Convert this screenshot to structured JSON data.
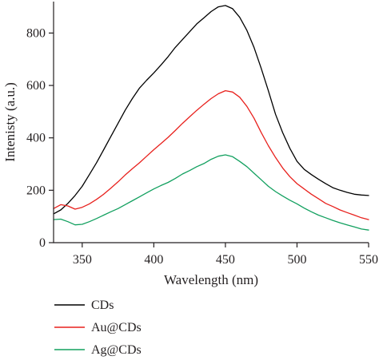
{
  "chart_data": {
    "type": "line",
    "xlabel": "Wavelength (nm)",
    "ylabel": "Intenisty (a.u.)",
    "xlim": [
      330,
      550
    ],
    "ylim": [
      0,
      920
    ],
    "xticks": [
      350,
      400,
      450,
      500,
      550
    ],
    "yticks": [
      0,
      200,
      400,
      600,
      800
    ],
    "legend_position": "bottom-left, below plot",
    "series": [
      {
        "name": "CDs",
        "color": "#000000",
        "points": [
          [
            330,
            110
          ],
          [
            335,
            125
          ],
          [
            340,
            150
          ],
          [
            345,
            180
          ],
          [
            350,
            215
          ],
          [
            355,
            260
          ],
          [
            360,
            305
          ],
          [
            365,
            355
          ],
          [
            370,
            405
          ],
          [
            375,
            455
          ],
          [
            380,
            505
          ],
          [
            385,
            550
          ],
          [
            390,
            590
          ],
          [
            395,
            620
          ],
          [
            400,
            648
          ],
          [
            405,
            678
          ],
          [
            410,
            710
          ],
          [
            415,
            745
          ],
          [
            420,
            775
          ],
          [
            425,
            805
          ],
          [
            430,
            835
          ],
          [
            435,
            858
          ],
          [
            440,
            882
          ],
          [
            445,
            900
          ],
          [
            450,
            905
          ],
          [
            455,
            893
          ],
          [
            460,
            860
          ],
          [
            465,
            810
          ],
          [
            470,
            745
          ],
          [
            475,
            665
          ],
          [
            480,
            580
          ],
          [
            485,
            490
          ],
          [
            490,
            420
          ],
          [
            495,
            360
          ],
          [
            500,
            310
          ],
          [
            505,
            280
          ],
          [
            510,
            260
          ],
          [
            515,
            242
          ],
          [
            520,
            225
          ],
          [
            525,
            210
          ],
          [
            530,
            200
          ],
          [
            535,
            192
          ],
          [
            540,
            185
          ],
          [
            545,
            182
          ],
          [
            550,
            180
          ]
        ]
      },
      {
        "name": "Au@CDs",
        "color": "#e8211d",
        "points": [
          [
            330,
            130
          ],
          [
            335,
            145
          ],
          [
            340,
            140
          ],
          [
            345,
            128
          ],
          [
            350,
            135
          ],
          [
            355,
            148
          ],
          [
            360,
            165
          ],
          [
            365,
            185
          ],
          [
            370,
            208
          ],
          [
            375,
            232
          ],
          [
            380,
            258
          ],
          [
            385,
            282
          ],
          [
            390,
            305
          ],
          [
            395,
            330
          ],
          [
            400,
            355
          ],
          [
            405,
            378
          ],
          [
            410,
            402
          ],
          [
            415,
            428
          ],
          [
            420,
            455
          ],
          [
            425,
            480
          ],
          [
            430,
            505
          ],
          [
            435,
            528
          ],
          [
            440,
            550
          ],
          [
            445,
            568
          ],
          [
            450,
            580
          ],
          [
            455,
            575
          ],
          [
            460,
            555
          ],
          [
            465,
            520
          ],
          [
            470,
            475
          ],
          [
            475,
            420
          ],
          [
            480,
            370
          ],
          [
            485,
            325
          ],
          [
            490,
            285
          ],
          [
            495,
            252
          ],
          [
            500,
            225
          ],
          [
            505,
            205
          ],
          [
            510,
            185
          ],
          [
            515,
            168
          ],
          [
            520,
            150
          ],
          [
            525,
            138
          ],
          [
            530,
            125
          ],
          [
            535,
            115
          ],
          [
            540,
            105
          ],
          [
            545,
            95
          ],
          [
            550,
            88
          ]
        ]
      },
      {
        "name": "Ag@CDs",
        "color": "#12a05f",
        "points": [
          [
            330,
            88
          ],
          [
            335,
            90
          ],
          [
            340,
            80
          ],
          [
            345,
            68
          ],
          [
            350,
            70
          ],
          [
            355,
            80
          ],
          [
            360,
            92
          ],
          [
            365,
            105
          ],
          [
            370,
            118
          ],
          [
            375,
            130
          ],
          [
            380,
            145
          ],
          [
            385,
            160
          ],
          [
            390,
            175
          ],
          [
            395,
            190
          ],
          [
            400,
            205
          ],
          [
            405,
            218
          ],
          [
            410,
            230
          ],
          [
            415,
            245
          ],
          [
            420,
            262
          ],
          [
            425,
            275
          ],
          [
            430,
            290
          ],
          [
            435,
            302
          ],
          [
            440,
            318
          ],
          [
            445,
            330
          ],
          [
            450,
            335
          ],
          [
            455,
            328
          ],
          [
            460,
            310
          ],
          [
            465,
            290
          ],
          [
            470,
            265
          ],
          [
            475,
            240
          ],
          [
            480,
            215
          ],
          [
            485,
            195
          ],
          [
            490,
            178
          ],
          [
            495,
            162
          ],
          [
            500,
            148
          ],
          [
            505,
            132
          ],
          [
            510,
            118
          ],
          [
            515,
            105
          ],
          [
            520,
            95
          ],
          [
            525,
            85
          ],
          [
            530,
            76
          ],
          [
            535,
            68
          ],
          [
            540,
            60
          ],
          [
            545,
            52
          ],
          [
            550,
            48
          ]
        ]
      }
    ]
  }
}
